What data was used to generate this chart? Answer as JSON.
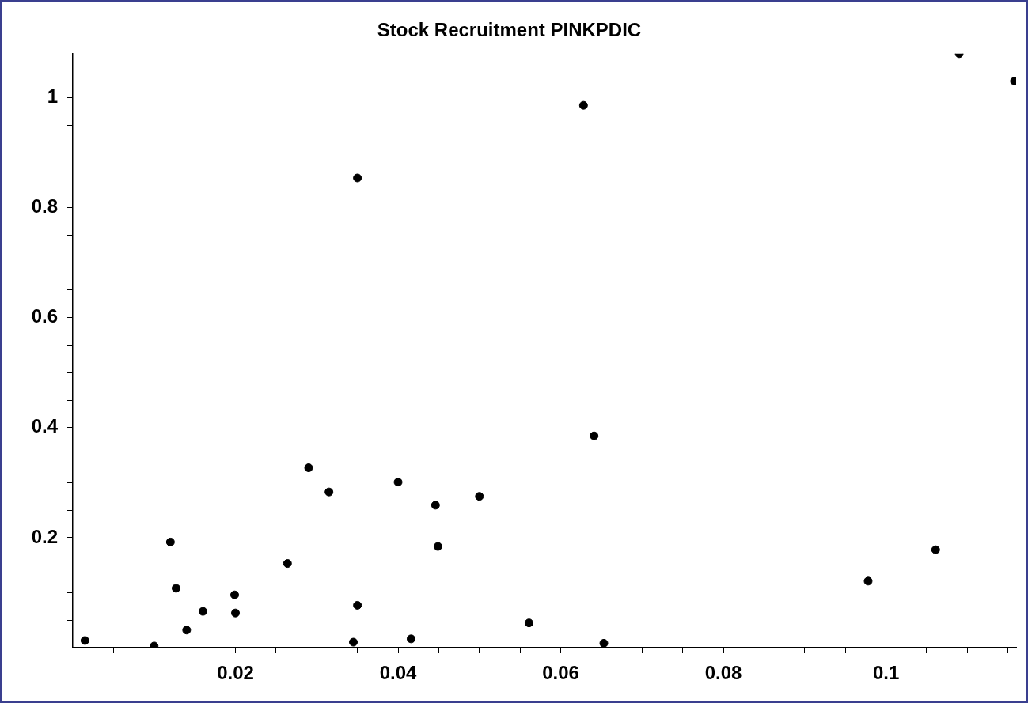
{
  "chart_data": {
    "type": "scatter",
    "title": "Stock Recruitment PINKPDIC",
    "x": [
      0.0015,
      0.01,
      0.012,
      0.0127,
      0.014,
      0.016,
      0.0199,
      0.02,
      0.0264,
      0.029,
      0.0315,
      0.0345,
      0.035,
      0.035,
      0.04,
      0.0416,
      0.0446,
      0.0449,
      0.05,
      0.0561,
      0.0628,
      0.0641,
      0.0653,
      0.0978,
      0.1061,
      0.109,
      0.1158
    ],
    "values": [
      0.013,
      0.003,
      0.192,
      0.108,
      0.032,
      0.066,
      0.096,
      0.063,
      0.153,
      0.327,
      0.283,
      0.01,
      0.077,
      0.854,
      0.301,
      0.016,
      0.259,
      0.184,
      0.275,
      0.045,
      0.986,
      0.385,
      0.008,
      0.121,
      0.178,
      1.08,
      1.03
    ],
    "color": "#000000",
    "marker": "circle",
    "grid": false,
    "legend": false,
    "xlim": [
      0,
      0.116
    ],
    "xticks": [
      {
        "value": 0.005,
        "label": null
      },
      {
        "value": 0.01,
        "label": null
      },
      {
        "value": 0.015,
        "label": null
      },
      0.02,
      {
        "value": 0.025,
        "label": null
      },
      {
        "value": 0.03,
        "label": null
      },
      {
        "value": 0.035,
        "label": null
      },
      0.04,
      {
        "value": 0.045,
        "label": null
      },
      {
        "value": 0.05,
        "label": null
      },
      {
        "value": 0.055,
        "label": null
      },
      0.06,
      {
        "value": 0.065,
        "label": null
      },
      {
        "value": 0.07,
        "label": null
      },
      {
        "value": 0.075,
        "label": null
      },
      0.08,
      {
        "value": 0.085,
        "label": null
      },
      {
        "value": 0.09,
        "label": null
      },
      {
        "value": 0.095,
        "label": null
      },
      0.1,
      {
        "value": 0.105,
        "label": null
      },
      {
        "value": 0.11,
        "label": null
      },
      {
        "value": 0.115,
        "label": null
      }
    ],
    "ylim": [
      0,
      1.08
    ],
    "yticks": [
      {
        "value": 0.05,
        "label": null
      },
      {
        "value": 0.1,
        "label": null
      },
      {
        "value": 0.15,
        "label": null
      },
      0.2,
      {
        "value": 0.25,
        "label": null
      },
      {
        "value": 0.3,
        "label": null
      },
      {
        "value": 0.35,
        "label": null
      },
      0.4,
      {
        "value": 0.45,
        "label": null
      },
      {
        "value": 0.5,
        "label": null
      },
      {
        "value": 0.55,
        "label": null
      },
      0.6,
      {
        "value": 0.65,
        "label": null
      },
      {
        "value": 0.7,
        "label": null
      },
      {
        "value": 0.75,
        "label": null
      },
      0.8,
      {
        "value": 0.85,
        "label": null
      },
      {
        "value": 0.9,
        "label": null
      },
      {
        "value": 0.95,
        "label": null
      },
      1,
      {
        "value": 1.05,
        "label": null
      }
    ]
  }
}
